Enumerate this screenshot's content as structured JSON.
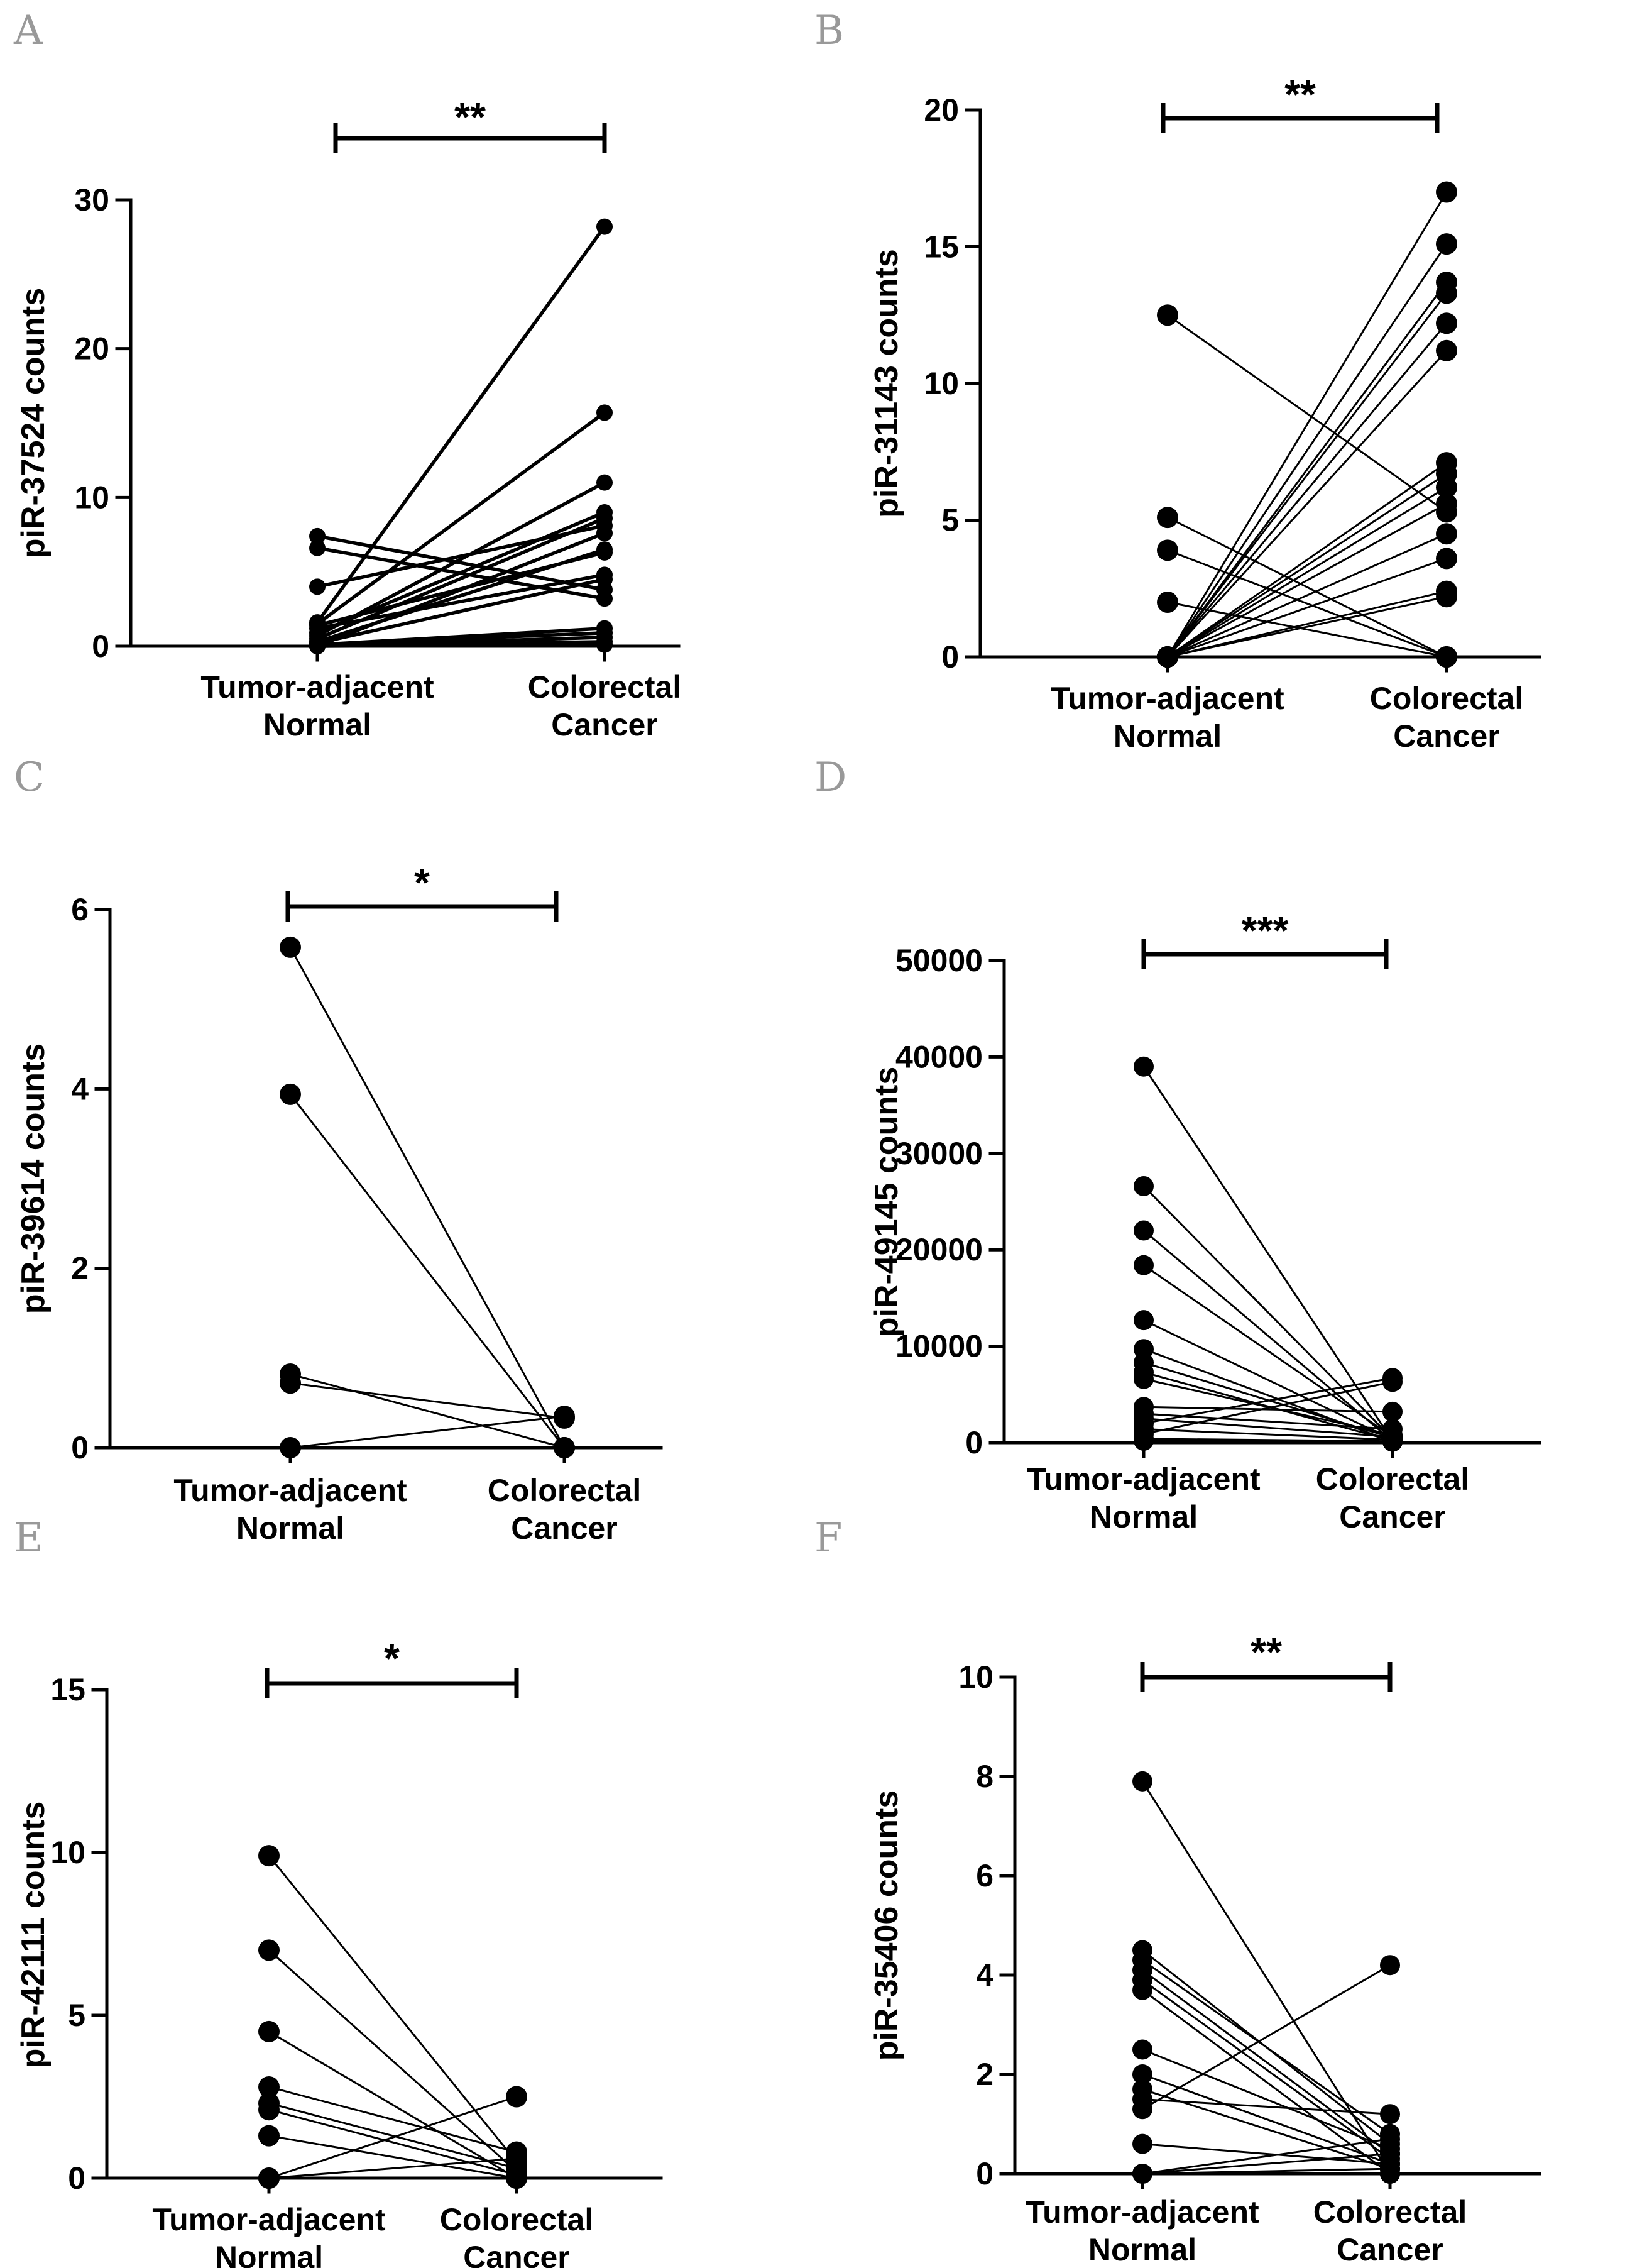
{
  "chart_data": [
    {
      "panel": "A",
      "type": "scatter",
      "ylabel": "piR-37524 counts",
      "categories": [
        "Tumor-adjacent|Normal",
        "Colorectal|Cancer"
      ],
      "yticks": [
        "0",
        "10",
        "20",
        "30"
      ],
      "ylim": [
        0,
        30
      ],
      "significance": "**",
      "pairs": [
        [
          7.4,
          3.8
        ],
        [
          6.6,
          3.2
        ],
        [
          4.0,
          8.1
        ],
        [
          1.6,
          28.2
        ],
        [
          1.5,
          15.7
        ],
        [
          1.4,
          6.3
        ],
        [
          1.2,
          4.8
        ],
        [
          0.9,
          9.0
        ],
        [
          0.7,
          11.0
        ],
        [
          0.5,
          8.6
        ],
        [
          0.3,
          6.5
        ],
        [
          0.2,
          4.5
        ],
        [
          0.1,
          1.2
        ],
        [
          0.1,
          0.9
        ],
        [
          0.0,
          0.6
        ],
        [
          0.0,
          0.3
        ],
        [
          0.0,
          0.1
        ],
        [
          0.0,
          7.6
        ]
      ]
    },
    {
      "panel": "B",
      "type": "scatter",
      "ylabel": "piR-31143 counts",
      "categories": [
        "Tumor-adjacent|Normal",
        "Colorectal|Cancer"
      ],
      "yticks": [
        "0",
        "5",
        "10",
        "15",
        "20"
      ],
      "ylim": [
        0,
        20
      ],
      "significance": "**",
      "pairs": [
        [
          12.5,
          5.3
        ],
        [
          5.1,
          0.0
        ],
        [
          3.9,
          0.0
        ],
        [
          2.0,
          0.0
        ],
        [
          0.0,
          17.0
        ],
        [
          0.0,
          15.1
        ],
        [
          0.0,
          13.7
        ],
        [
          0.0,
          13.3
        ],
        [
          0.0,
          12.2
        ],
        [
          0.0,
          11.2
        ],
        [
          0.0,
          7.1
        ],
        [
          0.0,
          6.7
        ],
        [
          0.0,
          6.2
        ],
        [
          0.0,
          5.6
        ],
        [
          0.0,
          4.5
        ],
        [
          0.0,
          3.6
        ],
        [
          0.0,
          2.4
        ],
        [
          0.0,
          2.2
        ]
      ]
    },
    {
      "panel": "C",
      "type": "scatter",
      "ylabel": "piR-39614 counts",
      "categories": [
        "Tumor-adjacent|Normal",
        "Colorectal|Cancer"
      ],
      "yticks": [
        "0",
        "2",
        "4",
        "6"
      ],
      "ylim": [
        0,
        6
      ],
      "significance": "*",
      "pairs": [
        [
          5.58,
          0.0
        ],
        [
          3.94,
          0.0
        ],
        [
          0.82,
          0.0
        ],
        [
          0.72,
          0.33
        ],
        [
          0.0,
          0.35
        ]
      ]
    },
    {
      "panel": "D",
      "type": "scatter",
      "ylabel": "piR-49145 counts",
      "categories": [
        "Tumor-adjacent|Normal",
        "Colorectal|Cancer"
      ],
      "yticks": [
        "0",
        "10000",
        "20000",
        "30000",
        "40000",
        "50000"
      ],
      "ylim": [
        0,
        50000
      ],
      "significance": "***",
      "pairs": [
        [
          39000,
          200
        ],
        [
          26600,
          400
        ],
        [
          22000,
          150
        ],
        [
          18400,
          600
        ],
        [
          12700,
          300
        ],
        [
          9700,
          100
        ],
        [
          8300,
          500
        ],
        [
          7300,
          200
        ],
        [
          6600,
          800
        ],
        [
          3700,
          3200
        ],
        [
          3000,
          1400
        ],
        [
          2500,
          600
        ],
        [
          2000,
          6700
        ],
        [
          1400,
          300
        ],
        [
          900,
          6300
        ],
        [
          400,
          150
        ],
        [
          200,
          100
        ]
      ]
    },
    {
      "panel": "E",
      "type": "scatter",
      "ylabel": "piR-42111 counts",
      "categories": [
        "Tumor-adjacent|Normal",
        "Colorectal|Cancer"
      ],
      "yticks": [
        "0",
        "5",
        "10",
        "15"
      ],
      "ylim": [
        0,
        15
      ],
      "significance": "*",
      "pairs": [
        [
          9.9,
          0.5
        ],
        [
          7.0,
          0.2
        ],
        [
          4.5,
          0.0
        ],
        [
          2.8,
          0.8
        ],
        [
          2.3,
          0.3
        ],
        [
          2.1,
          0.1
        ],
        [
          1.3,
          0.0
        ],
        [
          0.0,
          2.5
        ],
        [
          0.0,
          0.6
        ]
      ]
    },
    {
      "panel": "F",
      "type": "scatter",
      "ylabel": "piR-35406 counts",
      "categories": [
        "Tumor-adjacent|Normal",
        "Colorectal|Cancer"
      ],
      "yticks": [
        "0",
        "2",
        "4",
        "6",
        "8",
        "10"
      ],
      "ylim": [
        0,
        10
      ],
      "significance": "**",
      "pairs": [
        [
          7.9,
          0.0
        ],
        [
          4.5,
          0.6
        ],
        [
          4.3,
          0.8
        ],
        [
          4.1,
          0.4
        ],
        [
          3.9,
          0.3
        ],
        [
          3.7,
          0.0
        ],
        [
          2.5,
          0.5
        ],
        [
          2.0,
          0.2
        ],
        [
          1.7,
          0.1
        ],
        [
          1.5,
          1.2
        ],
        [
          1.3,
          4.2
        ],
        [
          0.6,
          0.2
        ],
        [
          0.0,
          0.7
        ],
        [
          0.0,
          0.4
        ],
        [
          0.0,
          0.1
        ]
      ]
    }
  ]
}
